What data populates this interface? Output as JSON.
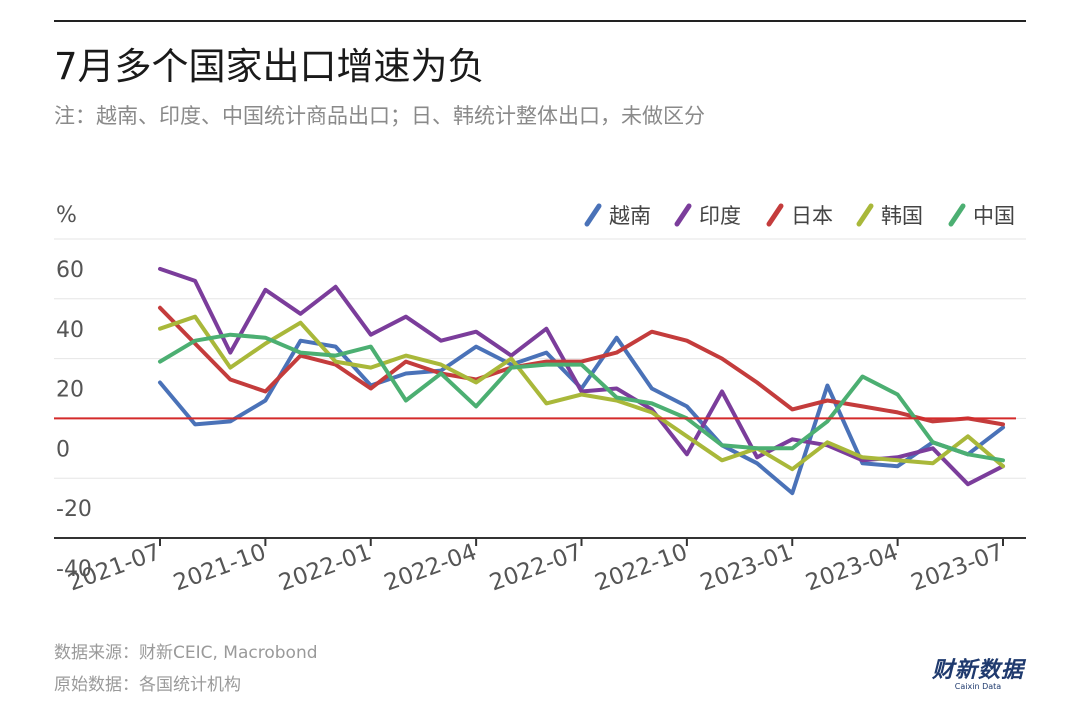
{
  "title": "7月多个国家出口增速为负",
  "subtitle": "注：越南、印度、中国统计商品出口；日、韩统计整体出口，未做区分",
  "source": "数据来源：财新CEIC, Macrobond",
  "origin": "原始数据：各国统计机构",
  "brand": {
    "name": "财新数据",
    "sub": "Caixin Data"
  },
  "colors": {
    "越南": "#4a72b8",
    "印度": "#7b3d9b",
    "日本": "#c43c3c",
    "韩国": "#a9b83a",
    "中国": "#4caf72",
    "zero_line": "#d42a2a",
    "grid": "#e6e6e6",
    "axis": "#333333"
  },
  "chart_data": {
    "type": "line",
    "unit_label": "%",
    "ylim": [
      -40,
      60
    ],
    "yticks": [
      60,
      40,
      20,
      0,
      -20,
      -40
    ],
    "x": [
      "2021-07",
      "2021-08",
      "2021-09",
      "2021-10",
      "2021-11",
      "2021-12",
      "2022-01",
      "2022-02",
      "2022-03",
      "2022-04",
      "2022-05",
      "2022-06",
      "2022-07",
      "2022-08",
      "2022-09",
      "2022-10",
      "2022-11",
      "2022-12",
      "2023-01",
      "2023-02",
      "2023-03",
      "2023-04",
      "2023-05",
      "2023-06",
      "2023-07"
    ],
    "xtick_labels": [
      "2021-07",
      "2021-10",
      "2022-01",
      "2022-04",
      "2022-07",
      "2022-10",
      "2023-01",
      "2023-04",
      "2023-07"
    ],
    "legend_position": "top-right",
    "grid": true,
    "series": [
      {
        "name": "越南",
        "values": [
          12,
          -2,
          -1,
          6,
          26,
          24,
          11,
          15,
          16,
          24,
          18,
          22,
          10,
          27,
          10,
          4,
          -9,
          -15,
          -25,
          11,
          -15,
          -16,
          -8,
          -12,
          -3
        ]
      },
      {
        "name": "印度",
        "values": [
          50,
          46,
          22,
          43,
          35,
          44,
          28,
          34,
          26,
          29,
          21,
          30,
          9,
          10,
          3,
          -12,
          9,
          -13,
          -7,
          -9,
          -14,
          -13,
          -10,
          -22,
          -16
        ]
      },
      {
        "name": "日本",
        "values": [
          37,
          25,
          13,
          9,
          21,
          18,
          10,
          19,
          15,
          13,
          17,
          19,
          19,
          22,
          29,
          26,
          20,
          12,
          3,
          6,
          4,
          2,
          -1,
          0,
          -2
        ]
      },
      {
        "name": "韩国",
        "values": [
          30,
          34,
          17,
          25,
          32,
          19,
          17,
          21,
          18,
          12,
          20,
          5,
          8,
          6,
          2,
          -6,
          -14,
          -10,
          -17,
          -8,
          -13,
          -14,
          -15,
          -6,
          -16
        ]
      },
      {
        "name": "中国",
        "values": [
          19,
          26,
          28,
          27,
          22,
          21,
          24,
          6,
          15,
          4,
          17,
          18,
          18,
          7,
          5,
          0,
          -9,
          -10,
          -10,
          -1,
          14,
          8,
          -8,
          -12,
          -14
        ]
      }
    ]
  }
}
